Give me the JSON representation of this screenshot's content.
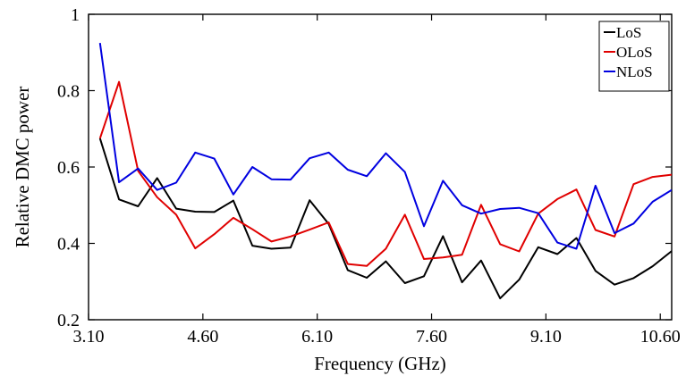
{
  "chart_data": {
    "type": "line",
    "xlabel": "Frequency (GHz)",
    "ylabel": "Relative DMC power",
    "xlim": [
      3.1,
      10.75
    ],
    "ylim": [
      0.2,
      1.0
    ],
    "xticks": [
      3.1,
      4.6,
      6.1,
      7.6,
      9.1,
      10.6
    ],
    "xtick_labels": [
      "3.10",
      "4.60",
      "6.10",
      "7.60",
      "9.10",
      "10.60"
    ],
    "yticks": [
      0.2,
      0.4,
      0.6,
      0.8,
      1.0
    ],
    "ytick_labels": [
      "0.2",
      "0.4",
      "0.6",
      "0.8",
      "1"
    ],
    "grid": false,
    "legend_position": "top-right",
    "x": [
      3.25,
      3.5,
      3.75,
      4.0,
      4.25,
      4.5,
      4.75,
      5.0,
      5.25,
      5.5,
      5.75,
      6.0,
      6.25,
      6.5,
      6.75,
      7.0,
      7.25,
      7.5,
      7.75,
      8.0,
      8.25,
      8.5,
      8.75,
      9.0,
      9.25,
      9.5,
      9.75,
      10.0,
      10.25,
      10.5,
      10.75
    ],
    "series": [
      {
        "name": "LoS",
        "color": "#000000",
        "values": [
          0.675,
          0.515,
          0.497,
          0.571,
          0.491,
          0.483,
          0.482,
          0.512,
          0.394,
          0.386,
          0.389,
          0.513,
          0.451,
          0.33,
          0.31,
          0.353,
          0.296,
          0.314,
          0.419,
          0.298,
          0.355,
          0.256,
          0.305,
          0.39,
          0.372,
          0.414,
          0.328,
          0.292,
          0.309,
          0.34,
          0.38
        ]
      },
      {
        "name": "OLoS",
        "color": "#e00000",
        "values": [
          0.675,
          0.823,
          0.59,
          0.521,
          0.475,
          0.387,
          0.424,
          0.467,
          0.437,
          0.405,
          0.418,
          0.436,
          0.455,
          0.346,
          0.341,
          0.386,
          0.475,
          0.359,
          0.363,
          0.37,
          0.501,
          0.398,
          0.379,
          0.478,
          0.516,
          0.541,
          0.435,
          0.418,
          0.555,
          0.574,
          0.58
        ]
      },
      {
        "name": "NLoS",
        "color": "#0000e0",
        "values": [
          0.925,
          0.56,
          0.596,
          0.54,
          0.559,
          0.638,
          0.622,
          0.528,
          0.6,
          0.568,
          0.567,
          0.623,
          0.638,
          0.593,
          0.576,
          0.636,
          0.587,
          0.445,
          0.564,
          0.5,
          0.478,
          0.49,
          0.493,
          0.479,
          0.402,
          0.386,
          0.551,
          0.427,
          0.452,
          0.509,
          0.54
        ]
      }
    ]
  }
}
